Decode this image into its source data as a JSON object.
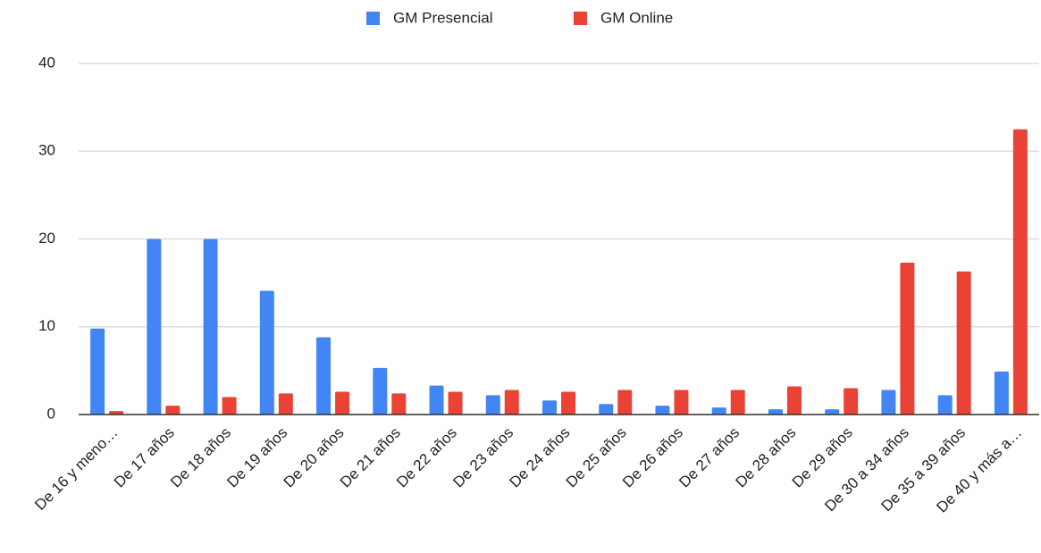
{
  "chart_data": {
    "type": "bar",
    "categories": [
      "De 16 y meno…",
      "De 17 años",
      "De 18 años",
      "De 19 años",
      "De 20 años",
      "De 21 años",
      "De 22 años",
      "De 23 años",
      "De 24 años",
      "De 25 años",
      "De 26 años",
      "De 27 años",
      "De 28 años",
      "De 29 años",
      "De 30 a 34 años",
      "De 35 a 39 años",
      "De 40 y más a…"
    ],
    "series": [
      {
        "name": "GM Presencial",
        "color": "#4285f4",
        "values": [
          9.8,
          20,
          20,
          14.1,
          8.8,
          5.3,
          3.3,
          2.2,
          1.6,
          1.2,
          1.0,
          0.8,
          0.6,
          0.6,
          2.8,
          2.2,
          4.9
        ]
      },
      {
        "name": "GM Online",
        "color": "#ea4335",
        "values": [
          0.4,
          1.0,
          2.0,
          2.4,
          2.6,
          2.4,
          2.6,
          2.8,
          2.6,
          2.8,
          2.8,
          2.8,
          3.2,
          3.0,
          17.3,
          16.3,
          32.5
        ]
      }
    ],
    "ylim": [
      0,
      40
    ],
    "yticks": [
      0,
      10,
      20,
      30,
      40
    ],
    "grid": true,
    "legend": "top"
  }
}
